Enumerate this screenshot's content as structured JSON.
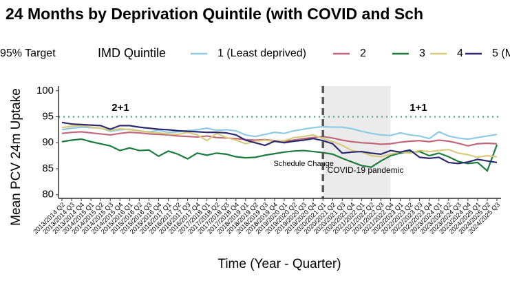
{
  "chart_data": {
    "type": "line",
    "title": "24 Months by Deprivation Quintile (with COVID and Sch",
    "legend_title": "IMD Quintile",
    "x_label": "Time (Year - Quarter)",
    "y_label": "Mean PCV 24m Uptake",
    "categories": [
      "2013/2014 Q2",
      "2013/2014 Q3",
      "2013/2014 Q4",
      "2014/2015 Q1",
      "2014/2015 Q2",
      "2014/2015 Q3",
      "2014/2015 Q4",
      "2015/2016 Q1",
      "2015/2016 Q2",
      "2015/2016 Q3",
      "2015/2016 Q4",
      "2016/2017 Q1",
      "2016/2017 Q2",
      "2016/2017 Q3",
      "2016/2017 Q4",
      "2017/2018 Q1",
      "2017/2018 Q2",
      "2017/2018 Q3",
      "2017/2018 Q4",
      "2018/2019 Q1",
      "2018/2019 Q2",
      "2018/2019 Q3",
      "2018/2019 Q4",
      "2019/2020 Q1",
      "2019/2020 Q2",
      "2019/2020 Q3",
      "2019/2020 Q4",
      "2020/2021 Q1",
      "2020/2021 Q2",
      "2020/2021 Q3",
      "2020/2021 Q4",
      "2021/2022 Q1",
      "2021/2022 Q2",
      "2021/2022 Q3",
      "2021/2022 Q4",
      "2022/2023 Q1",
      "2022/2023 Q2",
      "2022/2023 Q3",
      "2022/2023 Q4",
      "2023/2024 Q1",
      "2023/2024 Q2",
      "2023/2024 Q3",
      "2023/2024 Q4",
      "2024/2025 Q1",
      "2024/2025 Q2",
      "2024/2025 Q3"
    ],
    "series": [
      {
        "name": "1 (Least deprived)",
        "color": "#8ecae6",
        "values": [
          92.5,
          92.8,
          93,
          92.9,
          92.8,
          92.2,
          92.5,
          92.6,
          92.3,
          92.1,
          92.4,
          92,
          92.1,
          92.3,
          92.5,
          92.8,
          92.4,
          92.5,
          92.3,
          91.5,
          91.2,
          91.6,
          92,
          91.8,
          92.3,
          92.6,
          92.9,
          93.1,
          93,
          93,
          92.7,
          92.2,
          91.8,
          91.5,
          91.4,
          91.9,
          91.5,
          91.3,
          90.8,
          92.1,
          91.3,
          90.9,
          90.7,
          91,
          91.3,
          91.6
        ]
      },
      {
        "name": "2",
        "color": "#c0677b",
        "values": [
          91.8,
          92,
          92.1,
          91.9,
          91.7,
          91.5,
          91.8,
          92,
          91.9,
          91.7,
          91.6,
          91.5,
          91.3,
          91.2,
          91.1,
          91.3,
          91,
          90.9,
          90.8,
          90.6,
          90.5,
          90.6,
          90.4,
          90.3,
          90.5,
          90.8,
          91,
          91.2,
          90.9,
          90.5,
          90.2,
          90,
          89.9,
          89.7,
          89.8,
          90.1,
          90.3,
          90.4,
          90.2,
          90.5,
          90.3,
          89.9,
          89.4,
          89.8,
          89.9,
          89.8
        ]
      },
      {
        "name": "3",
        "color": "#1b7a3c",
        "values": [
          90.2,
          90.5,
          90.7,
          90.2,
          89.8,
          89.4,
          88.5,
          89,
          88.5,
          88.6,
          87.4,
          88.4,
          87.8,
          86.9,
          88,
          87.6,
          88,
          87.8,
          87.3,
          87.1,
          87.2,
          87.6,
          87.9,
          88.2,
          88.4,
          88.5,
          88.3,
          88.1,
          87.8,
          87,
          86.3,
          85.6,
          85.3,
          86.5,
          87.5,
          88,
          88.2,
          88.3,
          87.5,
          88,
          87.3,
          86.4,
          86,
          86.2,
          84.6,
          89.6
        ]
      },
      {
        "name": "4",
        "color": "#d8ca7d",
        "values": [
          92.9,
          93.2,
          93.3,
          93,
          92.8,
          92.4,
          92.7,
          92.5,
          92.3,
          92,
          91.9,
          91.7,
          91.6,
          92,
          91.5,
          90.4,
          91.8,
          91,
          90.5,
          89.8,
          90.3,
          90.5,
          90.3,
          90.4,
          91,
          91.2,
          91.5,
          90.8,
          90.2,
          89.5,
          88.5,
          88.2,
          87.5,
          87.3,
          87.8,
          88.2,
          88,
          88.5,
          88.3,
          88.5,
          88.7,
          88,
          87.7,
          87.2,
          87.5,
          87.3
        ]
      },
      {
        "name": "5 (M",
        "color": "#2b2a6e",
        "values": [
          93.9,
          93.6,
          93.5,
          93.4,
          93.3,
          92.6,
          93.3,
          93.3,
          93,
          92.8,
          92.6,
          92.5,
          92.3,
          92.2,
          92.1,
          92,
          92,
          91.9,
          91.5,
          90.5,
          90,
          89.5,
          90.3,
          90,
          90.3,
          90.5,
          90.8,
          90.4,
          89.8,
          88,
          88.2,
          88.3,
          88,
          87.8,
          88.5,
          88.2,
          88.6,
          87.2,
          87,
          87.2,
          86.2,
          86,
          86.3,
          86.8,
          86.5,
          86.2
        ]
      }
    ],
    "target": {
      "label": "95% Target",
      "value": 95,
      "color": "#5aa88f"
    },
    "covid_period": {
      "from": "2020/2021 Q1",
      "to": "2021/2022 Q4",
      "label": "COVID-19 pandemic"
    },
    "schedule_change": {
      "at": "2020/2021 Q1",
      "label": "Schedule Change"
    },
    "annotations": [
      "2+1",
      "1+1"
    ],
    "ylim": [
      79.3,
      100.9
    ],
    "yticks": [
      80,
      85,
      90,
      95,
      100
    ],
    "grid": false
  }
}
